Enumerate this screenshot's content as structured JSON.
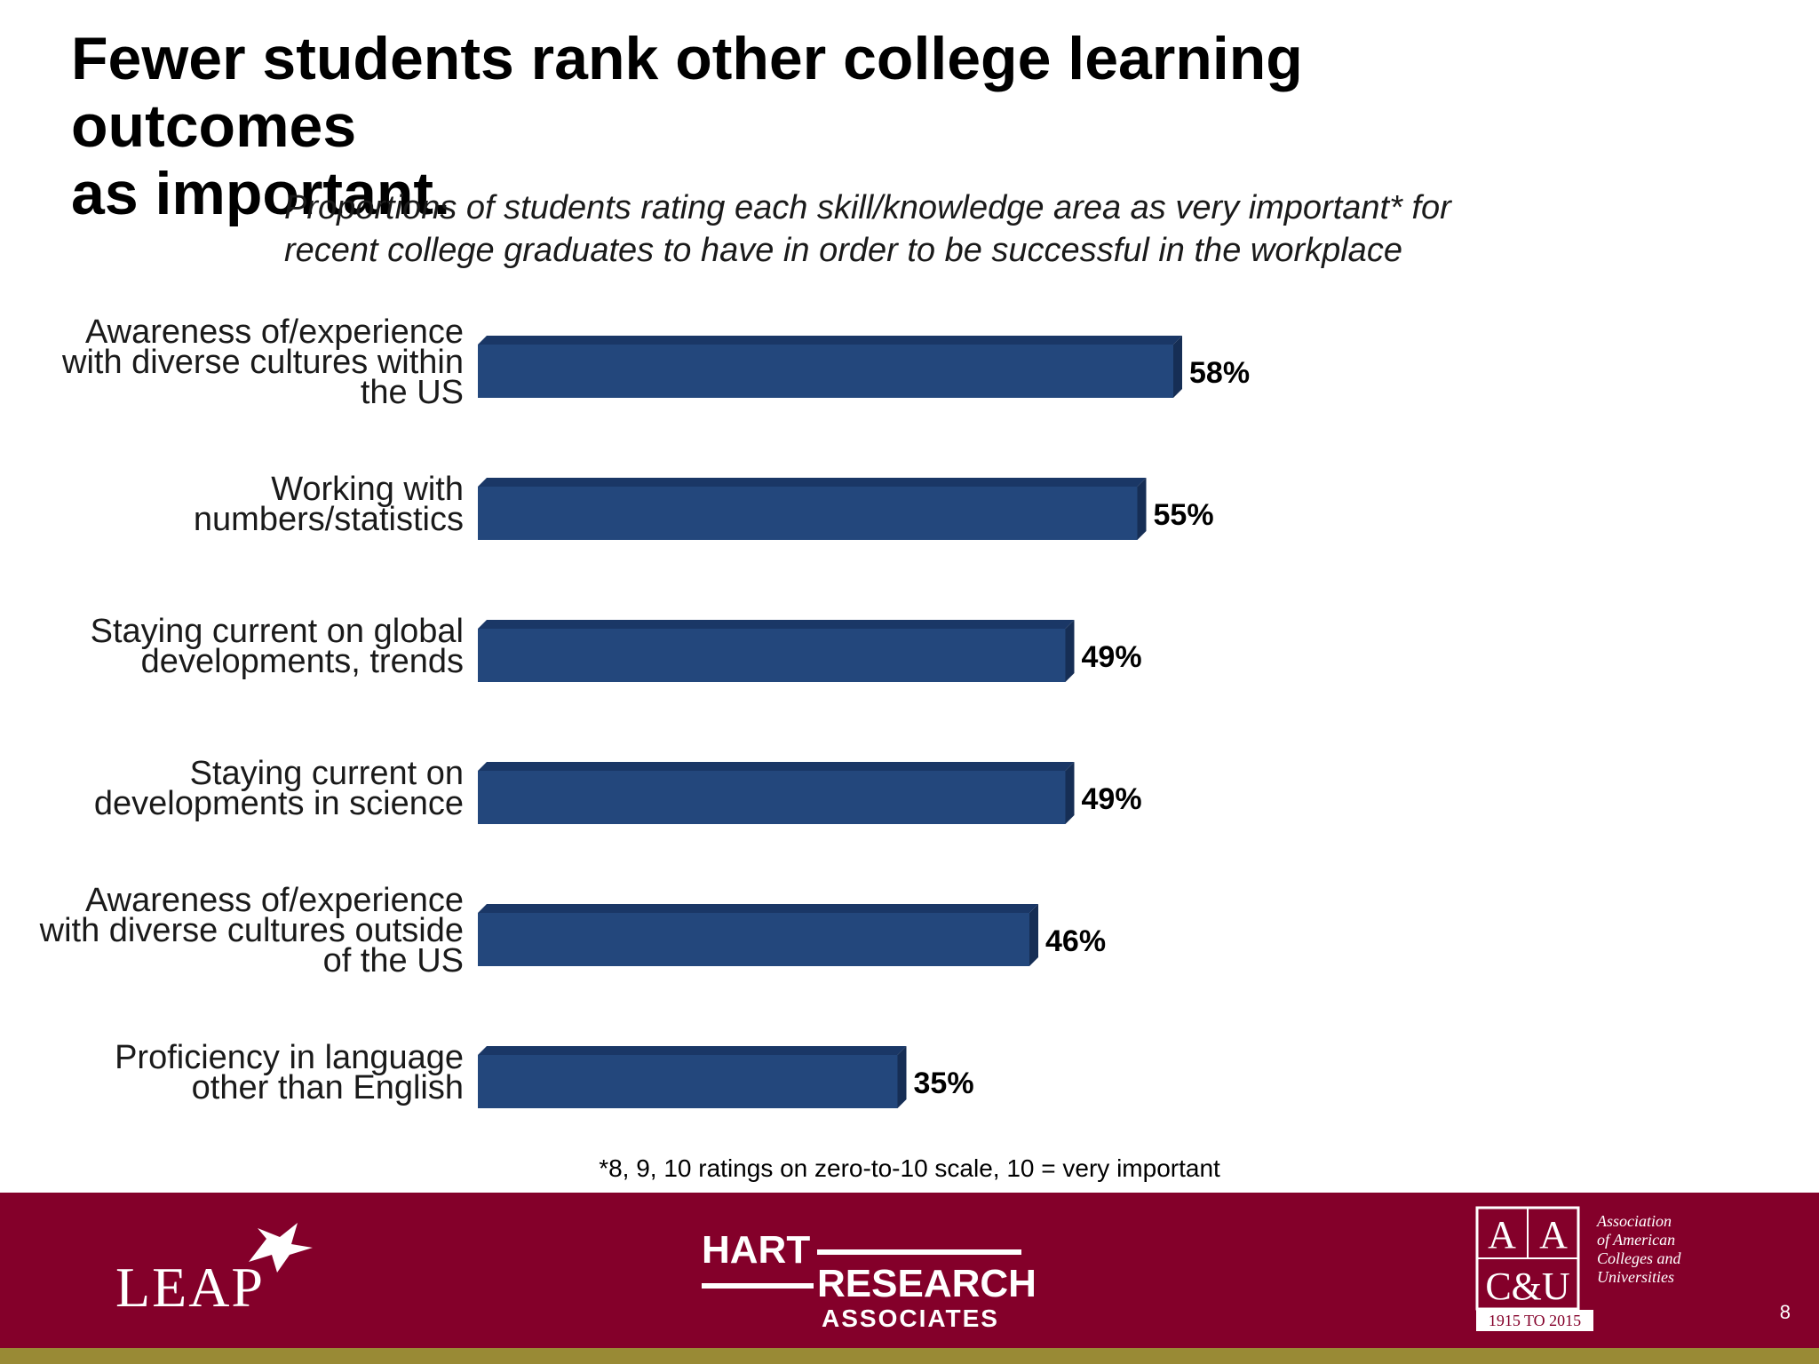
{
  "title_lines": [
    "Fewer students rank other college learning outcomes",
    "as important."
  ],
  "subtitle_lines": [
    "Proportions of students rating each skill/knowledge area as very important* for",
    "recent college graduates to have in order to be successful in the workplace"
  ],
  "chart_data": {
    "type": "bar",
    "orientation": "horizontal",
    "categories": [
      [
        "Awareness of/experience",
        "with diverse cultures within",
        "the US"
      ],
      [
        "Working with",
        "numbers/statistics"
      ],
      [
        "Staying current on global",
        "developments, trends"
      ],
      [
        "Staying current on",
        "developments in science"
      ],
      [
        "Awareness of/experience",
        "with diverse cultures outside",
        "of the US"
      ],
      [
        "Proficiency in language",
        "other than English"
      ]
    ],
    "values": [
      58,
      55,
      49,
      49,
      46,
      35
    ],
    "value_labels": [
      "58%",
      "55%",
      "49%",
      "49%",
      "46%",
      "35%"
    ],
    "xlim": [
      0,
      100
    ],
    "grid": false,
    "legend": "none",
    "colors": {
      "bar": "#23477c",
      "bar_top": "#1a3766",
      "bar_side": "#162e55"
    }
  },
  "footnote": "*8, 9, 10 ratings on zero-to-10 scale, 10 = very important",
  "footer": {
    "leap_logo_text": "LEAP",
    "hart_logo": {
      "word1": "HART",
      "word2": "RESEARCH",
      "word3": "ASSOCIATES"
    },
    "aacu_logo": {
      "mark": "AAC&U",
      "name_lines": [
        "Association",
        "of American",
        "Colleges and",
        "Universities"
      ],
      "years": "1915 TO 2015"
    },
    "page_number": "8",
    "colors": {
      "background": "#84002a",
      "stripe": "#998a35"
    }
  }
}
